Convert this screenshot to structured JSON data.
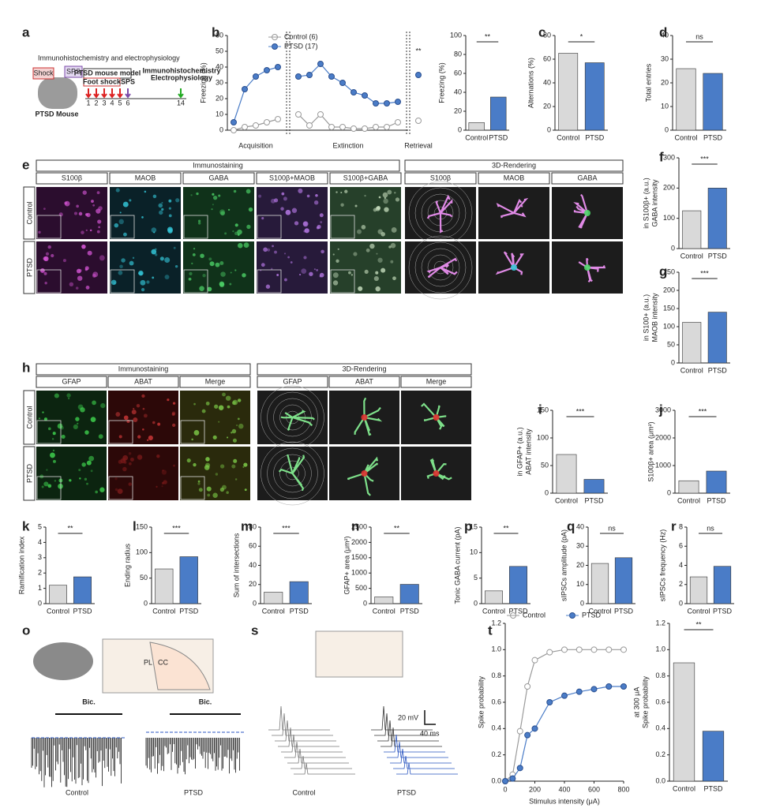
{
  "figure": {
    "panel_letters": [
      "a",
      "b",
      "c",
      "d",
      "e",
      "f",
      "g",
      "h",
      "i",
      "j",
      "k",
      "l",
      "m",
      "n",
      "o",
      "p",
      "q",
      "r",
      "s",
      "t"
    ],
    "a": {
      "title": "Immunohistochemistry and electrophysiology",
      "model": "PTSD mouse model",
      "shock": "Foot shock",
      "sps": "SPS",
      "days": [
        "1",
        "2",
        "3",
        "4",
        "5",
        "6"
      ],
      "day_end": "14",
      "readouts": [
        "Immunohistochemistry",
        "Electrophysiology"
      ],
      "mouse": "PTSD Mouse",
      "icons": [
        "Shock",
        "SPS"
      ]
    },
    "e": {
      "groups": [
        "Immunostaining",
        "3D-Rendering"
      ],
      "channels": [
        "S100β",
        "MAOB",
        "GABA",
        "S100β+MAOB",
        "S100β+GABA",
        "S100β",
        "MAOB",
        "GABA"
      ],
      "rows": [
        "Control",
        "PTSD"
      ]
    },
    "h": {
      "groups": [
        "Immunostaining",
        "3D-Rendering"
      ],
      "channels": [
        "GFAP",
        "ABAT",
        "Merge",
        "GFAP",
        "ABAT",
        "Merge"
      ],
      "rows": [
        "Control",
        "PTSD"
      ]
    },
    "o": {
      "drug": [
        "Bic.",
        "Bic."
      ],
      "conditions": [
        "Control",
        "PTSD"
      ],
      "regions": [
        "PL",
        "CC"
      ]
    },
    "s": {
      "scale": [
        "20 mV",
        "40 ms"
      ],
      "conditions": [
        "Control",
        "PTSD"
      ]
    }
  },
  "chart_data": [
    {
      "type": "line",
      "ylabel": [
        "Freezing (%)"
      ],
      "sections": [
        "Acquisition",
        "Extinction",
        "Retrieval"
      ],
      "categories": [
        null,
        null,
        null,
        null,
        null,
        null,
        null,
        null,
        null,
        null,
        null,
        null,
        null,
        null,
        null,
        null
      ],
      "series": [
        {
          "name": "Control (6)",
          "color": "#9a9a9a",
          "marker": "open",
          "values": [
            0,
            2,
            3,
            5,
            7,
            10,
            3,
            10,
            2,
            2,
            1,
            1,
            2,
            2,
            5,
            6
          ]
        },
        {
          "name": "PTSD (17)",
          "color": "#4a7cc7",
          "marker": "filled",
          "values": [
            5,
            26,
            34,
            38,
            40,
            34,
            35,
            42,
            34,
            30,
            24,
            22,
            17,
            17,
            18,
            35
          ]
        }
      ],
      "ylim": [
        0,
        60
      ],
      "yticks": [
        0,
        10,
        20,
        30,
        40,
        50,
        60
      ],
      "significance": "**"
    },
    {
      "type": "bar",
      "ylabel": [
        "Freezing (%)"
      ],
      "categories": [
        "Control",
        "PTSD"
      ],
      "values": [
        8,
        35
      ],
      "colors": [
        "#d9d9d9",
        "#4a7cc7"
      ],
      "ylim": [
        0,
        100
      ],
      "yticks": [
        0,
        20,
        40,
        60,
        80,
        100
      ],
      "significance": "**"
    },
    {
      "type": "bar",
      "ylabel": [
        "Alternations (%)"
      ],
      "categories": [
        "Control",
        "PTSD"
      ],
      "values": [
        65,
        57
      ],
      "colors": [
        "#d9d9d9",
        "#4a7cc7"
      ],
      "ylim": [
        0,
        80
      ],
      "yticks": [
        0,
        20,
        40,
        60,
        80
      ],
      "significance": "*"
    },
    {
      "type": "bar",
      "ylabel": [
        "Total entries"
      ],
      "categories": [
        "Control",
        "PTSD"
      ],
      "values": [
        26,
        24
      ],
      "colors": [
        "#d9d9d9",
        "#4a7cc7"
      ],
      "ylim": [
        0,
        40
      ],
      "yticks": [
        0,
        10,
        20,
        30,
        40
      ],
      "significance": "ns"
    },
    {
      "type": "bar",
      "ylabel": [
        "GABA intensity",
        "in S100β+ (a.u.)"
      ],
      "categories": [
        "Control",
        "PTSD"
      ],
      "values": [
        125,
        200
      ],
      "colors": [
        "#d9d9d9",
        "#4a7cc7"
      ],
      "ylim": [
        0,
        300
      ],
      "yticks": [
        0,
        100,
        200,
        300
      ],
      "significance": "***"
    },
    {
      "type": "bar",
      "ylabel": [
        "MAOB intensity",
        "in S100+ (a.u.)"
      ],
      "categories": [
        "Control",
        "PTSD"
      ],
      "values": [
        112,
        140
      ],
      "colors": [
        "#d9d9d9",
        "#4a7cc7"
      ],
      "ylim": [
        0,
        250
      ],
      "yticks": [
        0,
        50,
        100,
        150,
        200,
        250
      ],
      "significance": "***"
    },
    {
      "type": "bar",
      "ylabel": [
        "ABAT intensity",
        "in GFAP+ (a.u.)"
      ],
      "categories": [
        "Control",
        "PTSD"
      ],
      "values": [
        70,
        25
      ],
      "colors": [
        "#d9d9d9",
        "#4a7cc7"
      ],
      "ylim": [
        0,
        150
      ],
      "yticks": [
        0,
        50,
        100,
        150
      ],
      "significance": "***"
    },
    {
      "type": "bar",
      "ylabel": [
        "S100β+ area  (μm²)"
      ],
      "categories": [
        "Control",
        "PTSD"
      ],
      "values": [
        450,
        800
      ],
      "colors": [
        "#d9d9d9",
        "#4a7cc7"
      ],
      "ylim": [
        0,
        3000
      ],
      "yticks": [
        0,
        1000,
        2000,
        3000
      ],
      "significance": "***"
    },
    {
      "type": "bar",
      "ylabel": [
        "Ramification index"
      ],
      "categories": [
        "Control",
        "PTSD"
      ],
      "values": [
        1.2,
        1.75
      ],
      "colors": [
        "#d9d9d9",
        "#4a7cc7"
      ],
      "ylim": [
        0,
        5
      ],
      "yticks": [
        0,
        1,
        2,
        3,
        4,
        5
      ],
      "significance": "**"
    },
    {
      "type": "bar",
      "ylabel": [
        "Ending radius"
      ],
      "categories": [
        "Control",
        "PTSD"
      ],
      "values": [
        68,
        92
      ],
      "colors": [
        "#d9d9d9",
        "#4a7cc7"
      ],
      "ylim": [
        0,
        150
      ],
      "yticks": [
        0,
        50,
        100,
        150
      ],
      "significance": "***"
    },
    {
      "type": "bar",
      "ylabel": [
        "Sum of intersections"
      ],
      "categories": [
        "Control",
        "PTSD"
      ],
      "values": [
        12,
        23
      ],
      "colors": [
        "#d9d9d9",
        "#4a7cc7"
      ],
      "ylim": [
        0,
        80
      ],
      "yticks": [
        0,
        20,
        40,
        60,
        80
      ],
      "significance": "***"
    },
    {
      "type": "bar",
      "ylabel": [
        "GFAP+ area  (μm²)"
      ],
      "categories": [
        "Control",
        "PTSD"
      ],
      "values": [
        220,
        630
      ],
      "colors": [
        "#d9d9d9",
        "#4a7cc7"
      ],
      "ylim": [
        0,
        2500
      ],
      "yticks": [
        0,
        500,
        1000,
        1500,
        2000,
        2500
      ],
      "significance": "**"
    },
    {
      "type": "bar",
      "ylabel": [
        "Tonic GABA current (pA)"
      ],
      "categories": [
        "Control",
        "PTSD"
      ],
      "values": [
        2.5,
        7.3
      ],
      "colors": [
        "#d9d9d9",
        "#4a7cc7"
      ],
      "ylim": [
        0,
        15
      ],
      "yticks": [
        0,
        5,
        10,
        15
      ],
      "significance": "**"
    },
    {
      "type": "bar",
      "ylabel": [
        "sIPSCs amplitude (pA)"
      ],
      "categories": [
        "Control",
        "PTSD"
      ],
      "values": [
        21,
        24
      ],
      "colors": [
        "#d9d9d9",
        "#4a7cc7"
      ],
      "ylim": [
        0,
        40
      ],
      "yticks": [
        0,
        10,
        20,
        30,
        40
      ],
      "significance": "ns"
    },
    {
      "type": "bar",
      "ylabel": [
        "sIPSCs frequency (Hz)"
      ],
      "categories": [
        "Control",
        "PTSD"
      ],
      "values": [
        2.8,
        3.9
      ],
      "colors": [
        "#d9d9d9",
        "#4a7cc7"
      ],
      "ylim": [
        0,
        8
      ],
      "yticks": [
        0,
        2,
        4,
        6,
        8
      ],
      "significance": "ns"
    },
    {
      "type": "line",
      "ylabel": [
        "Spike probability"
      ],
      "xlabel": "Stimulus intensity (μA)",
      "x": [
        0,
        50,
        100,
        150,
        200,
        300,
        400,
        500,
        600,
        700,
        800
      ],
      "series": [
        {
          "name": "Control",
          "color": "#9a9a9a",
          "marker": "open",
          "values": [
            0,
            0.05,
            0.38,
            0.72,
            0.92,
            0.98,
            1.0,
            1.0,
            1.0,
            1.0,
            1.0
          ]
        },
        {
          "name": "PTSD",
          "color": "#4a7cc7",
          "marker": "filled",
          "values": [
            0,
            0.02,
            0.1,
            0.35,
            0.4,
            0.6,
            0.65,
            0.68,
            0.7,
            0.72,
            0.72
          ]
        }
      ],
      "xlim": [
        0,
        800
      ],
      "xticks": [
        0,
        200,
        400,
        600,
        800
      ],
      "ylim": [
        0,
        1.2
      ],
      "yticks": [
        {
          "value": 0,
          "label": "0.0"
        },
        {
          "value": 0.2,
          "label": "0.2"
        },
        {
          "value": 0.4,
          "label": "0.4"
        },
        {
          "value": 0.6,
          "label": "0.6"
        },
        {
          "value": 0.8,
          "label": "0.8"
        },
        {
          "value": 1,
          "label": "1.0"
        },
        {
          "value": 1.2,
          "label": "1.2"
        }
      ]
    },
    {
      "type": "bar",
      "ylabel": [
        "Spike probability",
        "at 300 μA"
      ],
      "categories": [
        "Control",
        "PTSD"
      ],
      "values": [
        0.9,
        0.38
      ],
      "colors": [
        "#d9d9d9",
        "#4a7cc7"
      ],
      "ylim": [
        0,
        1.2
      ],
      "yticks": [
        {
          "value": 0,
          "label": "0.0"
        },
        {
          "value": 0.2,
          "label": "0.2"
        },
        {
          "value": 0.4,
          "label": "0.4"
        },
        {
          "value": 0.6,
          "label": "0.6"
        },
        {
          "value": 0.8,
          "label": "0.8"
        },
        {
          "value": 1,
          "label": "1.0"
        },
        {
          "value": 1.2,
          "label": "1.2"
        }
      ],
      "significance": "**"
    }
  ]
}
